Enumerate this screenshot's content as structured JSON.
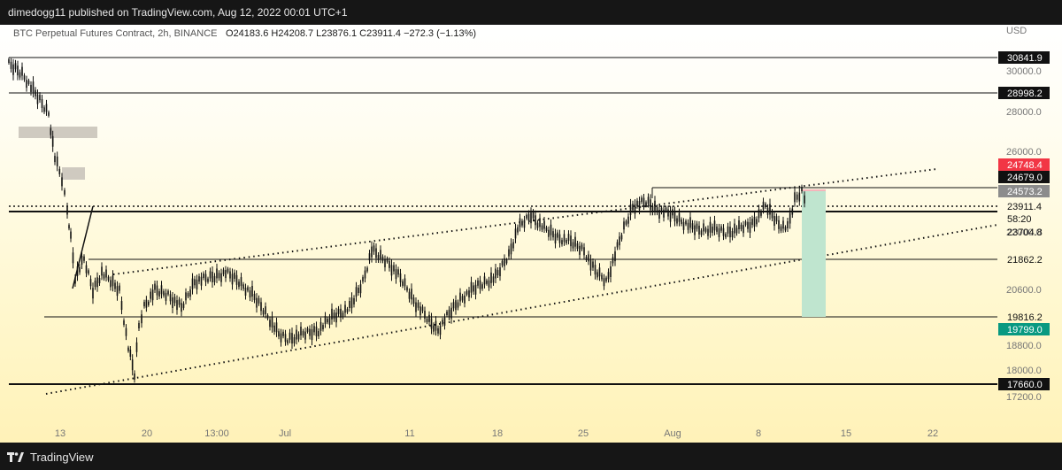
{
  "header": {
    "publish_line": "dimedogg11 published on TradingView.com, Aug 12, 2022 00:01 UTC+1",
    "symbol_line": "BTC Perpetual Futures Contract, 2h, BINANCE",
    "ohlc": [
      {
        "key": "O",
        "value": "24183.6"
      },
      {
        "key": "H",
        "value": "24208.7"
      },
      {
        "key": "L",
        "value": "23876.1"
      },
      {
        "key": "C",
        "value": "23911.4"
      }
    ],
    "change": "−272.3 (−1.13%)"
  },
  "price_axis": {
    "currency": "USD",
    "ticks": [
      "30000.0",
      "28000.0",
      "26000.0",
      "22000.0",
      "20600.0",
      "18800.0",
      "18000.0",
      "17200.0"
    ]
  },
  "price_labels": [
    {
      "value": "30841.9",
      "style": "black"
    },
    {
      "value": "28998.2",
      "style": "black"
    },
    {
      "value": "24748.4",
      "style": "red"
    },
    {
      "value": "24679.0",
      "style": "black"
    },
    {
      "value": "24573.2",
      "style": "gray"
    },
    {
      "value": "23911.4",
      "style": "white"
    },
    {
      "value": "58:20",
      "style": "white"
    },
    {
      "value": "23704.8",
      "style": "white"
    },
    {
      "value": "21862.2",
      "style": "white"
    },
    {
      "value": "19816.2",
      "style": "white"
    },
    {
      "value": "19799.0",
      "style": "teal"
    },
    {
      "value": "17660.0",
      "style": "black"
    }
  ],
  "time_axis": [
    "13",
    "20",
    "13:00",
    "Jul",
    "11",
    "18",
    "25",
    "Aug",
    "8",
    "15",
    "22"
  ],
  "footer": {
    "brand": "TradingView"
  },
  "colors": {
    "red": "#f23645",
    "teal": "#089981",
    "gray_label": "#8c8c8c",
    "position_zone": "#bfe5cf",
    "stop_zone": "#f5b5bb"
  }
}
